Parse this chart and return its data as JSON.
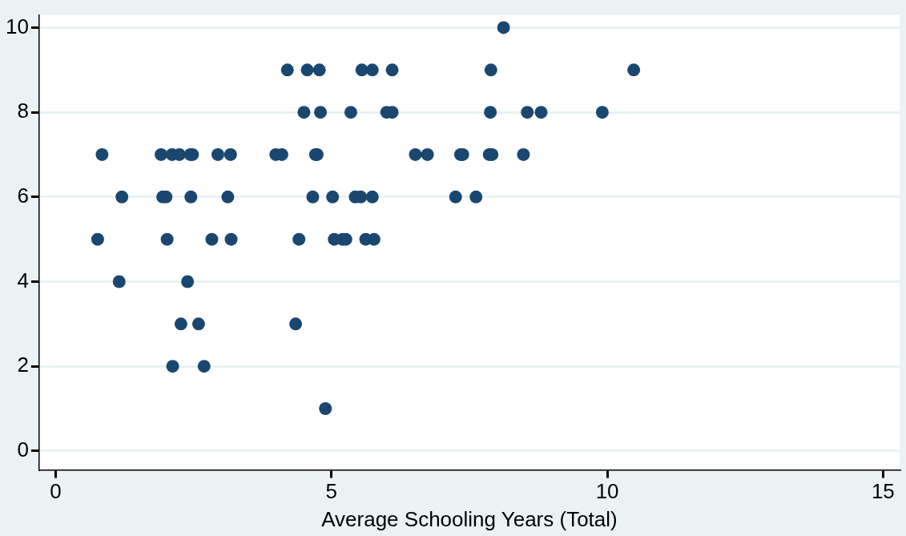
{
  "chart_data": {
    "type": "scatter",
    "xlabel": "Average Schooling Years (Total)",
    "xlim": [
      -0.3,
      15.3
    ],
    "xticks": [
      0,
      5,
      10,
      15
    ],
    "ylim": [
      -0.45,
      10.3
    ],
    "yticks": [
      0,
      2,
      4,
      6,
      8,
      10
    ],
    "grid": "y",
    "marker": "circle",
    "legend": false,
    "series": [
      {
        "color": "#1a476f",
        "x": [
          8.12,
          4.2,
          4.56,
          4.78,
          5.55,
          5.74,
          6.1,
          7.89,
          10.48,
          4.5,
          4.8,
          5.35,
          6.0,
          6.1,
          7.88,
          8.55,
          8.8,
          9.91,
          0.84,
          1.91,
          2.11,
          2.24,
          2.44,
          2.48,
          2.94,
          3.17,
          3.99,
          4.1,
          4.71,
          4.74,
          6.52,
          6.74,
          7.34,
          7.38,
          7.86,
          7.91,
          8.48,
          1.2,
          1.94,
          2.0,
          2.45,
          3.12,
          4.66,
          5.02,
          5.43,
          5.53,
          5.74,
          7.25,
          7.62,
          0.76,
          2.02,
          2.83,
          3.18,
          4.41,
          5.05,
          5.2,
          5.26,
          5.62,
          5.77,
          1.15,
          2.39,
          2.27,
          2.59,
          4.35,
          2.12,
          2.69,
          4.89
        ],
        "values": [
          10,
          9,
          9,
          9,
          9,
          9,
          9,
          9,
          9,
          8,
          8,
          8,
          8,
          8,
          8,
          8,
          8,
          8,
          7,
          7,
          7,
          7,
          7,
          7,
          7,
          7,
          7,
          7,
          7,
          7,
          7,
          7,
          7,
          7,
          7,
          7,
          7,
          6,
          6,
          6,
          6,
          6,
          6,
          6,
          6,
          6,
          6,
          6,
          6,
          5,
          5,
          5,
          5,
          5,
          5,
          5,
          5,
          5,
          5,
          4,
          4,
          3,
          3,
          3,
          2,
          2,
          1
        ]
      }
    ]
  }
}
